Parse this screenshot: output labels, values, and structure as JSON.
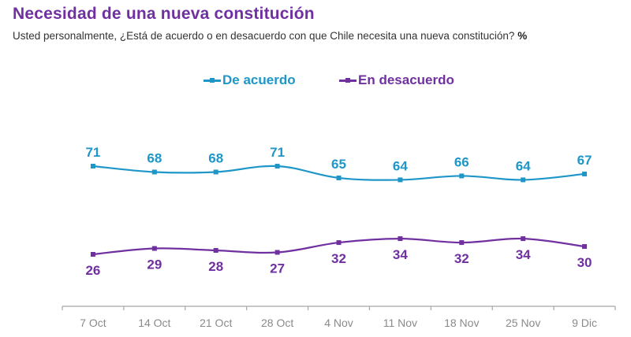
{
  "header": {
    "title": "Necesidad de una nueva constitución",
    "subtitle": "Usted personalmente, ¿Está de acuerdo o en desacuerdo con que Chile necesita una nueva constitución?",
    "subtitle_unit": "%"
  },
  "colors": {
    "de_acuerdo": "#1E96C8",
    "en_desacuerdo": "#7030A0",
    "axis": "#a6a6a6",
    "tick_label": "#8a8a8a"
  },
  "chart_data": {
    "type": "line",
    "title": "Necesidad de una nueva constitución",
    "subtitle": "Usted personalmente, ¿Está de acuerdo o en desacuerdo con que Chile necesita una nueva constitución? %",
    "xlabel": "",
    "ylabel": "%",
    "categories": [
      "7 Oct",
      "14 Oct",
      "21 Oct",
      "28 Oct",
      "4 Nov",
      "11 Nov",
      "18 Nov",
      "25 Nov",
      "9 Dic"
    ],
    "series": [
      {
        "name": "De acuerdo",
        "values": [
          71,
          68,
          68,
          71,
          65,
          64,
          66,
          64,
          67
        ],
        "label_position": "above"
      },
      {
        "name": "En desacuerdo",
        "values": [
          26,
          29,
          28,
          27,
          32,
          34,
          32,
          34,
          30
        ],
        "label_position": "below"
      }
    ],
    "ylim": [
      0,
      100
    ],
    "grid": false,
    "legend": "top-center",
    "smooth": true,
    "markers": "square"
  }
}
